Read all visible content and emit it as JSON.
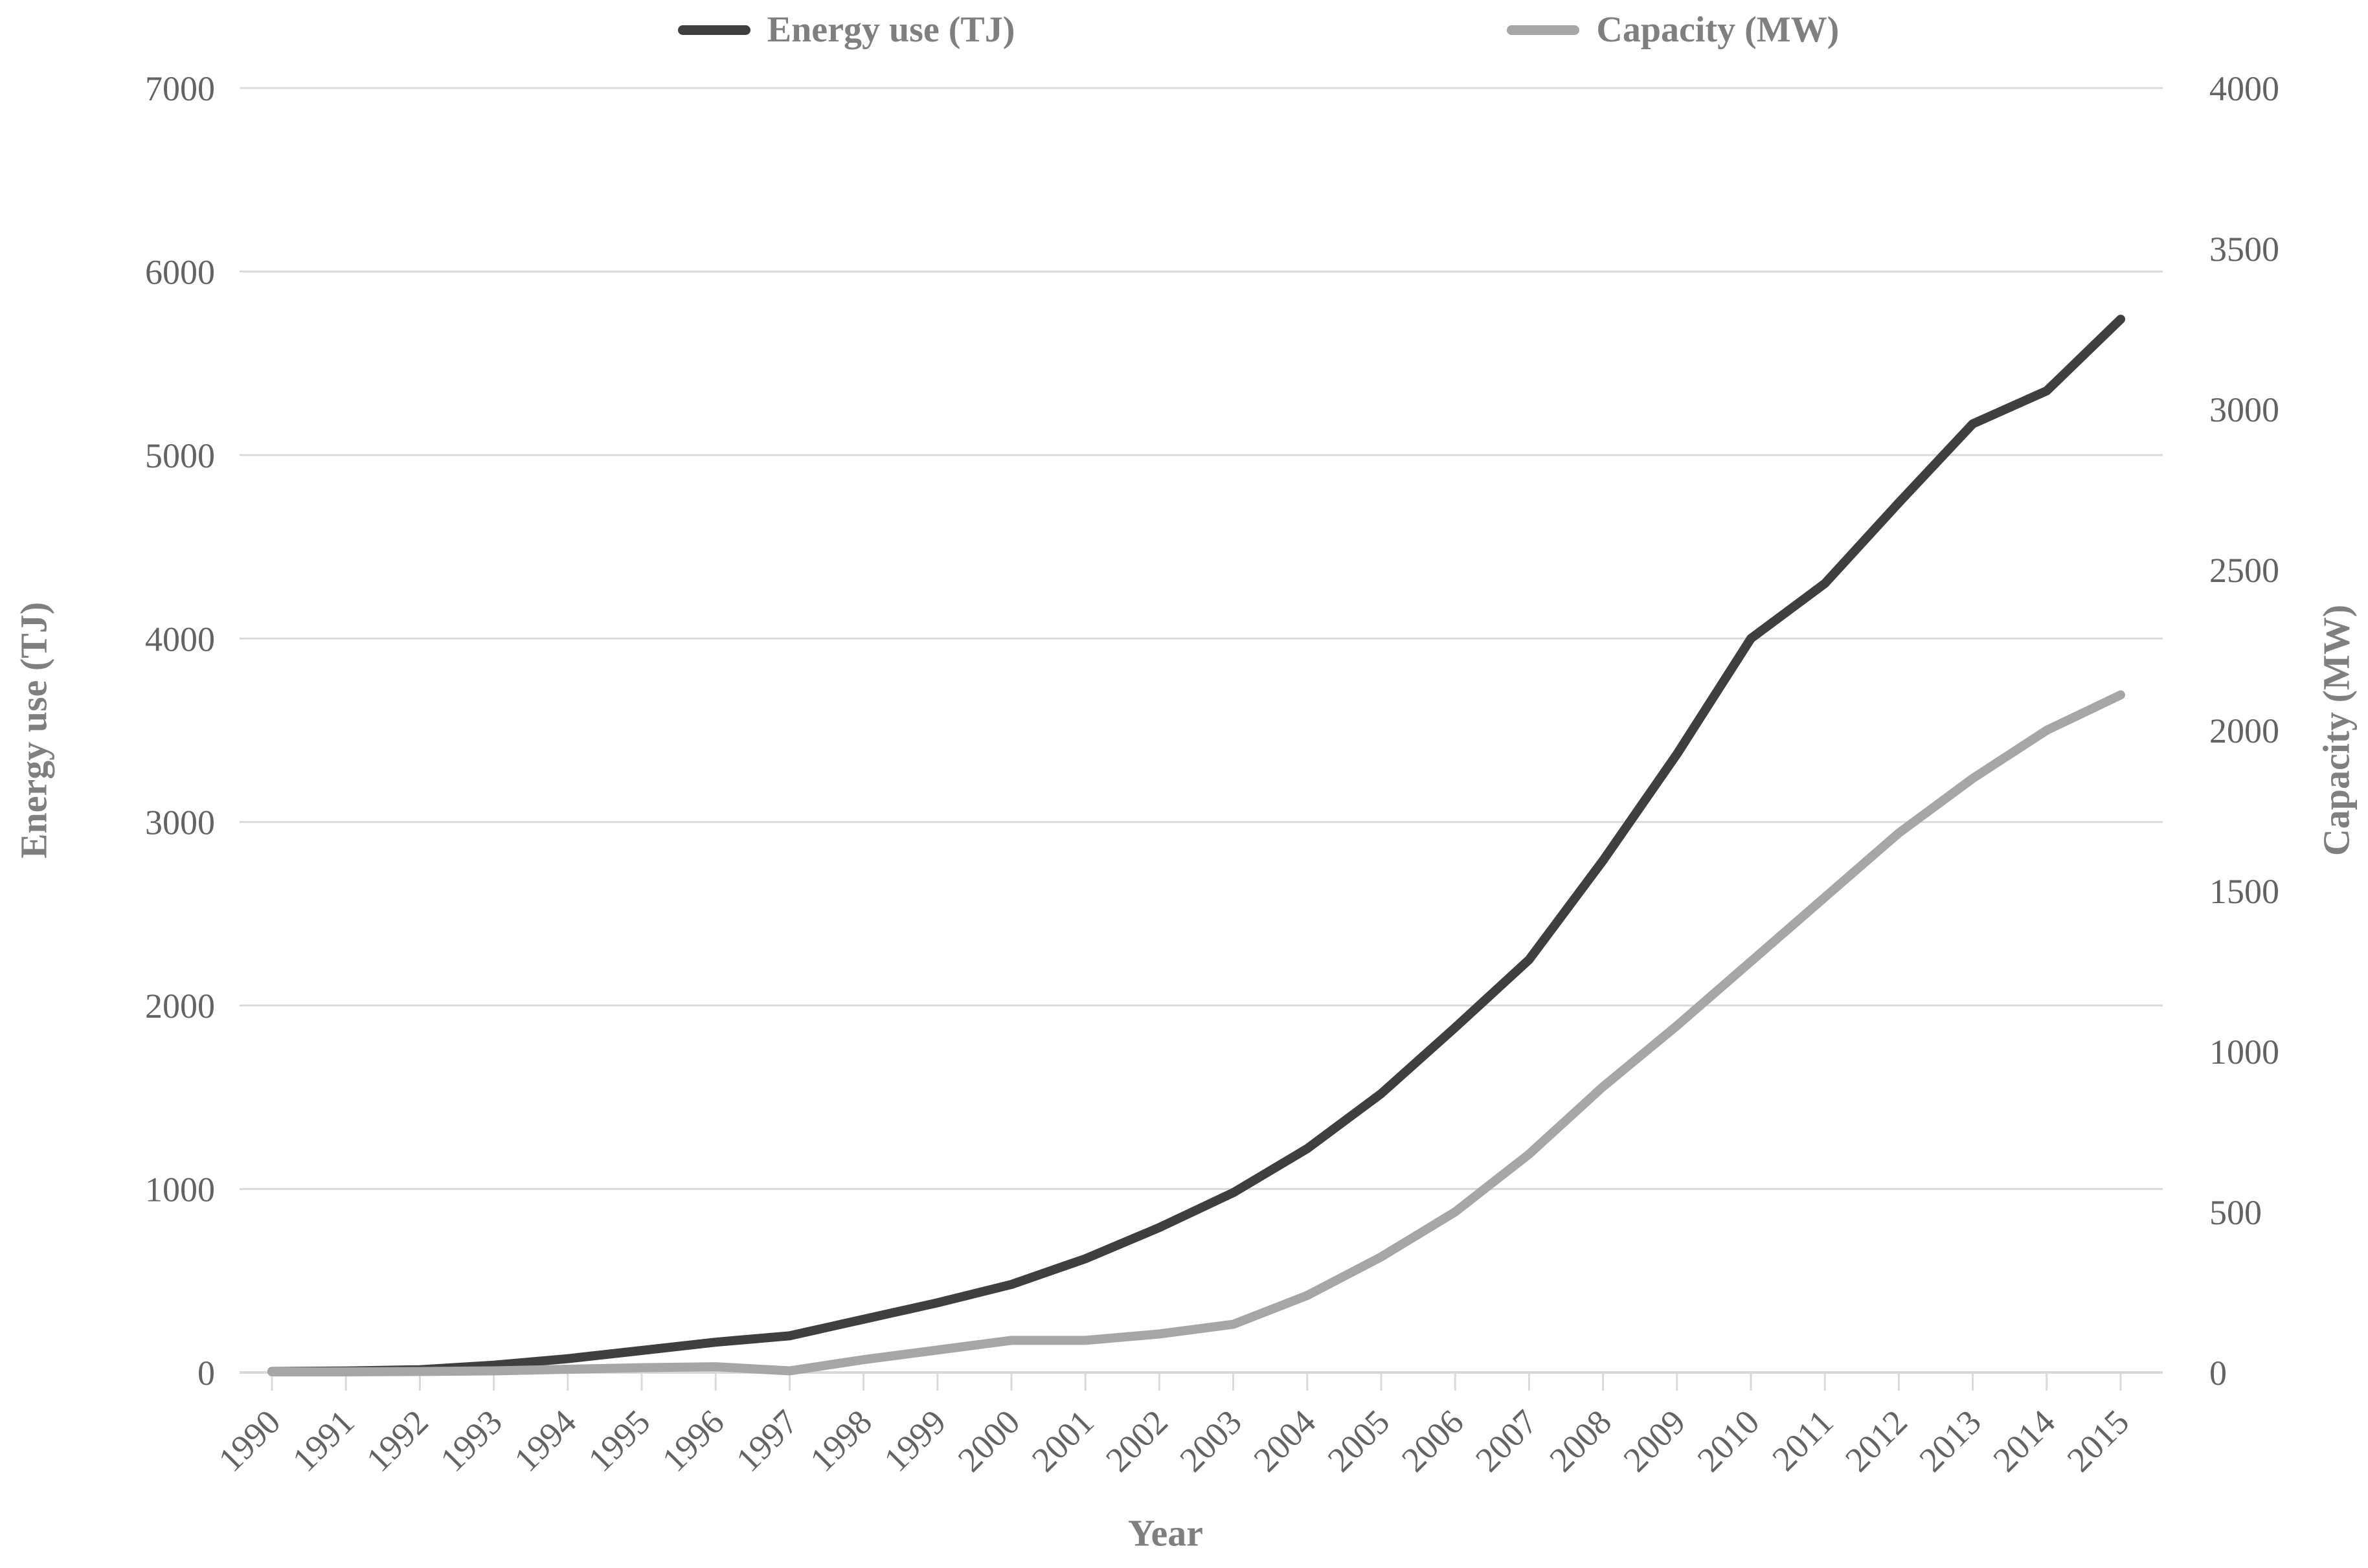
{
  "colors": {
    "energy_line": "#3f3f3f",
    "capacity_line": "#a6a6a6",
    "gridline": "#d9d9d9",
    "tick_text": "#636363",
    "title_text": "#7f7f7f",
    "background": "#ffffff"
  },
  "legend": {
    "items": [
      {
        "label": "Energy use (TJ)",
        "color": "#3f3f3f"
      },
      {
        "label": "Capacity (MW)",
        "color": "#a6a6a6"
      }
    ]
  },
  "chart_data": {
    "type": "line",
    "title": "",
    "x_axis": {
      "label": "Year"
    },
    "left_axis": {
      "label": "Energy use (TJ)",
      "min": 0,
      "max": 7000,
      "step": 1000,
      "ticks": [
        "0",
        "1000",
        "2000",
        "3000",
        "4000",
        "5000",
        "6000",
        "7000"
      ]
    },
    "right_axis": {
      "label": "Capacity (MW)",
      "min": 0,
      "max": 4000,
      "step": 500,
      "ticks": [
        "0",
        "500",
        "1000",
        "1500",
        "2000",
        "2500",
        "3000",
        "3500",
        "4000"
      ]
    },
    "x": [
      1990,
      1991,
      1992,
      1993,
      1994,
      1995,
      1996,
      1997,
      1998,
      1999,
      2000,
      2001,
      2002,
      2003,
      2004,
      2005,
      2006,
      2007,
      2008,
      2009,
      2010,
      2011,
      2012,
      2013,
      2014,
      2015
    ],
    "series": [
      {
        "name": "Energy use (TJ)",
        "axis": "left",
        "color": "#3f3f3f",
        "values": [
          5,
          8,
          15,
          40,
          75,
          120,
          165,
          200,
          290,
          380,
          480,
          620,
          790,
          980,
          1220,
          1520,
          1880,
          2250,
          2790,
          3370,
          4000,
          4300,
          4740,
          5170,
          5350,
          5740
        ]
      },
      {
        "name": "Capacity (MW)",
        "axis": "right",
        "color": "#a6a6a6",
        "values": [
          2,
          2,
          3,
          5,
          10,
          15,
          18,
          5,
          40,
          70,
          100,
          100,
          120,
          150,
          240,
          360,
          500,
          680,
          890,
          1080,
          1280,
          1480,
          1680,
          1850,
          2000,
          2110
        ]
      }
    ],
    "grid": true,
    "legend_position": "top"
  }
}
